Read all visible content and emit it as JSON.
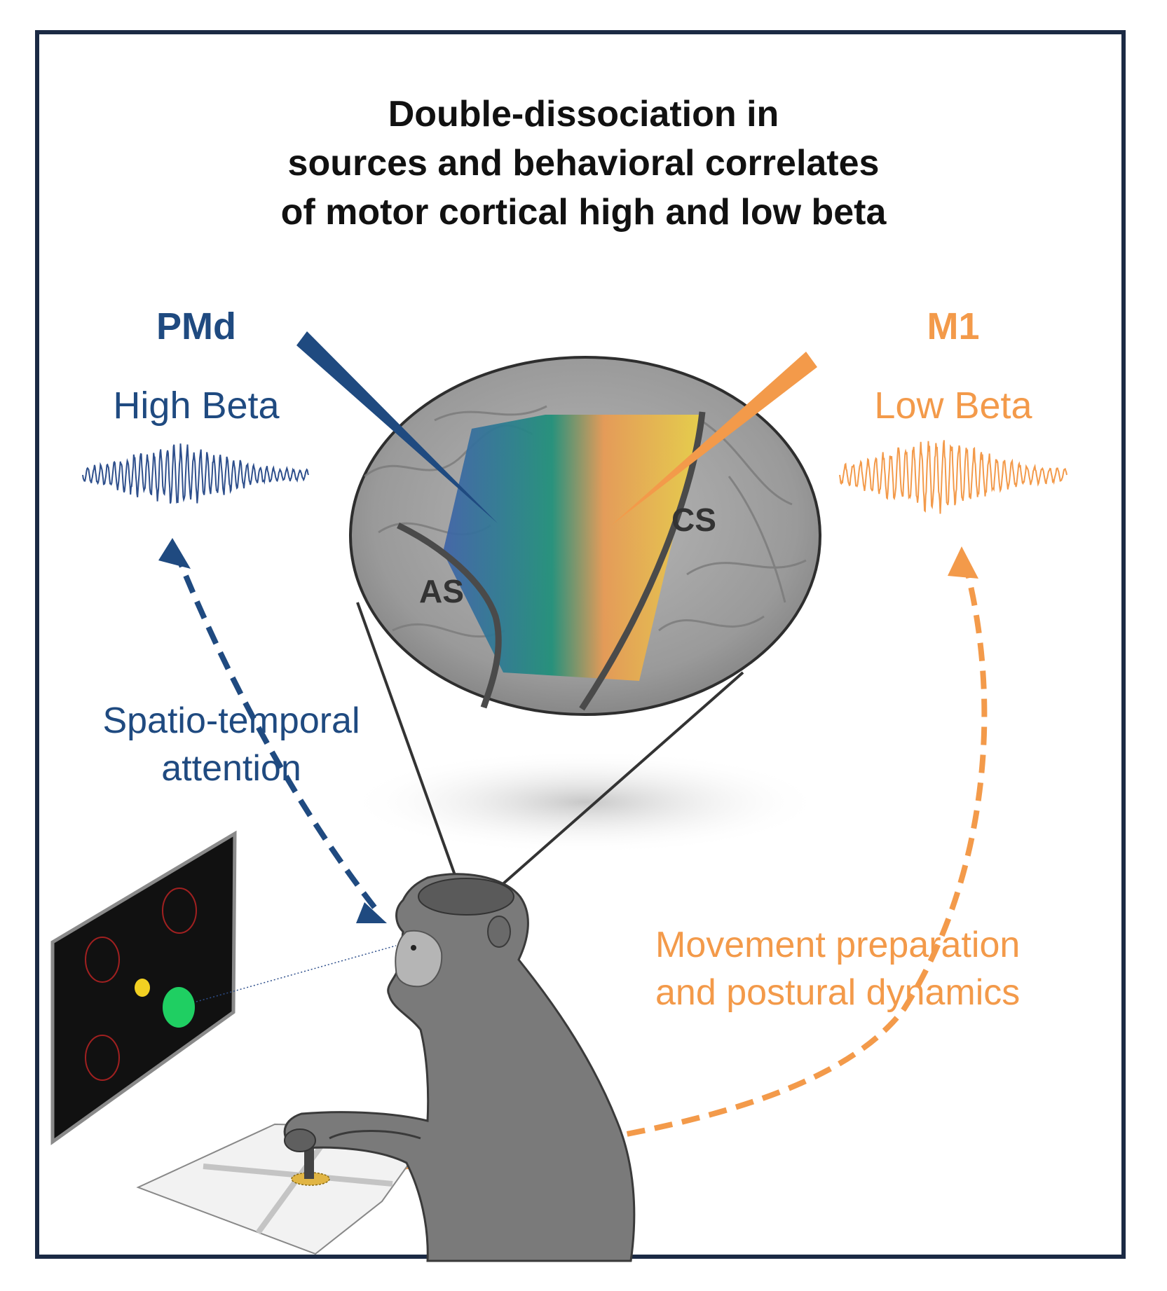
{
  "title": {
    "line1": "Double-dissociation in",
    "line2": "sources and behavioral correlates",
    "line3": "of motor cortical high and low beta"
  },
  "left": {
    "region": "PMd",
    "band": "High Beta",
    "correlate_line1": "Spatio-temporal",
    "correlate_line2": "attention",
    "color": "#1f4a80"
  },
  "right": {
    "region": "M1",
    "band": "Low Beta",
    "correlate_line1": "Movement preparation",
    "correlate_line2": "and postural dynamics",
    "color": "#f39a4a"
  },
  "brain": {
    "sulcus_left": "AS",
    "sulcus_right": "CS"
  },
  "screen": {
    "background": "#111111",
    "target_ring_color": "#a02020",
    "cue_color": "#f2d022",
    "target_color": "#1fcf62"
  }
}
